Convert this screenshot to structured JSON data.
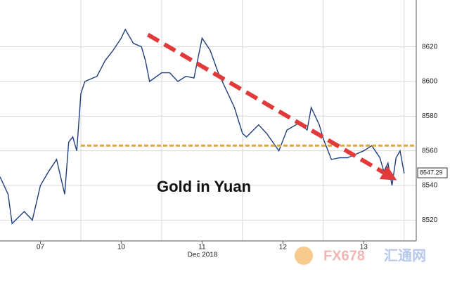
{
  "chart_data": {
    "type": "line",
    "annotation": "Gold in Yuan",
    "x_axis_label": "Dec 2018",
    "series": [
      {
        "name": "Gold in Yuan",
        "color": "#1f3f7a",
        "x": [
          0,
          0.1,
          0.15,
          0.3,
          0.4,
          0.5,
          0.6,
          0.7,
          0.8,
          0.85,
          0.9,
          0.95,
          1.0,
          1.05,
          1.2,
          1.3,
          1.4,
          1.5,
          1.55,
          1.65,
          1.75,
          1.8,
          1.85,
          2.0,
          2.1,
          2.2,
          2.3,
          2.4,
          2.5,
          2.6,
          2.7,
          2.8,
          2.9,
          3.0,
          3.05,
          3.2,
          3.3,
          3.45,
          3.55,
          3.7,
          3.8,
          3.85,
          3.95,
          4.0,
          4.1,
          4.2,
          4.3,
          4.4,
          4.5,
          4.6,
          4.7,
          4.75,
          4.8,
          4.85,
          4.9,
          4.95,
          5.0
        ],
        "values": [
          8545,
          8535,
          8518,
          8525,
          8520,
          8540,
          8548,
          8555,
          8535,
          8565,
          8568,
          8560,
          8593,
          8600,
          8603,
          8612,
          8618,
          8625,
          8630,
          8622,
          8620,
          8612,
          8600,
          8605,
          8605,
          8600,
          8603,
          8602,
          8625,
          8618,
          8605,
          8595,
          8585,
          8570,
          8568,
          8575,
          8570,
          8560,
          8572,
          8576,
          8572,
          8585,
          8575,
          8567,
          8555,
          8556,
          8556,
          8558,
          8560,
          8563,
          8556,
          8548,
          8553,
          8540,
          8556,
          8560,
          8547
        ]
      }
    ],
    "resistance": 8563,
    "resistance_color": "#e0a82e",
    "trend_arrow": {
      "color": "#e03a3a",
      "from": [
        1.83,
        8627
      ],
      "to": [
        4.91,
        8543
      ]
    },
    "last_price": 8547.29,
    "xlim": [
      0,
      5.15
    ],
    "xticks": [
      {
        "value": 0.5,
        "label": "07"
      },
      {
        "value": 1.5,
        "label": "10"
      },
      {
        "value": 2.5,
        "label": "11"
      },
      {
        "value": 3.5,
        "label": "12"
      },
      {
        "value": 4.5,
        "label": "13"
      }
    ],
    "xgrid": [
      1,
      2,
      3,
      4,
      5
    ],
    "ylim": [
      8508,
      8647
    ],
    "yticks": [
      8520,
      8540,
      8560,
      8580,
      8600,
      8620
    ],
    "grid": true,
    "watermark": "FX678",
    "watermark_cn": "汇通网"
  }
}
